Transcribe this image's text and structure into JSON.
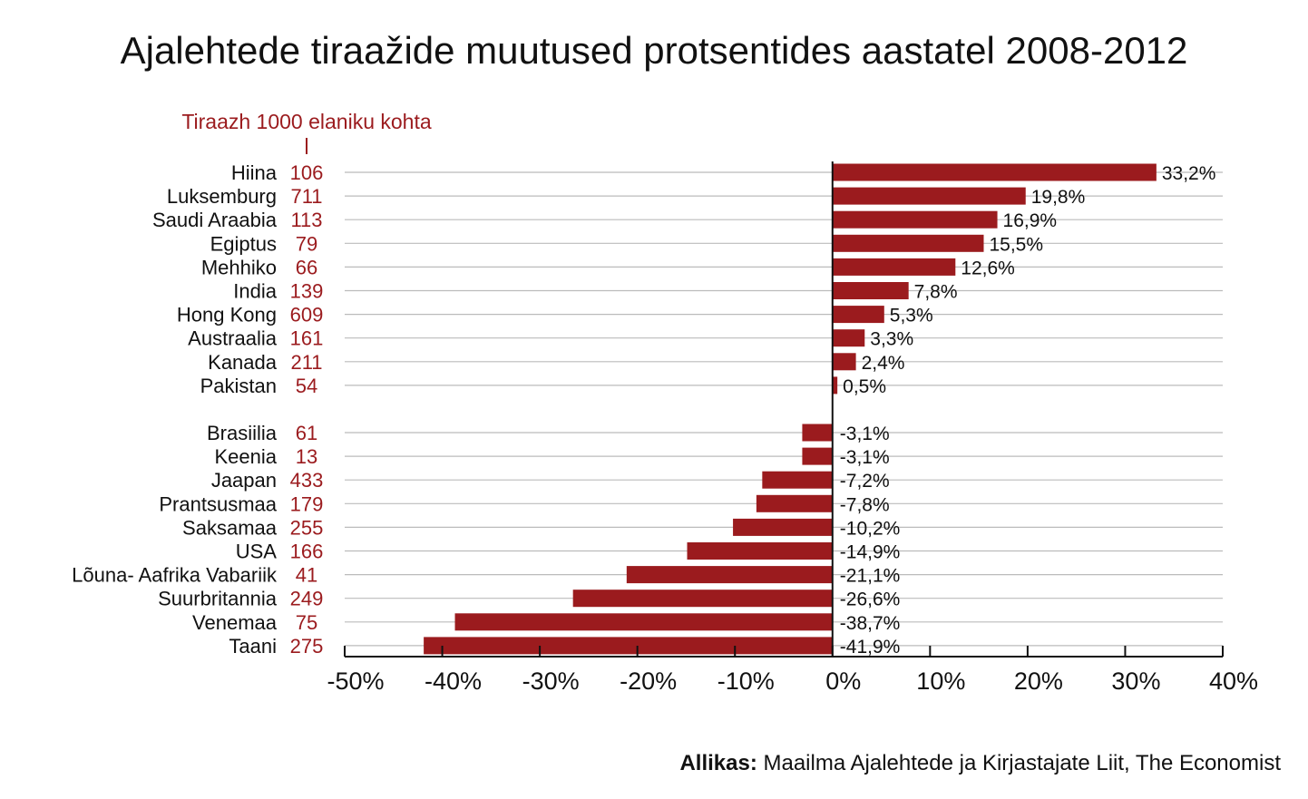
{
  "chart_data": {
    "type": "bar",
    "orientation": "horizontal",
    "title": "Ajalehtede tiraažide muutused protsentides aastatel 2008-2012",
    "secondary_column_label": "Tiraazh 1000 elaniku kohta",
    "categories": [
      "Hiina",
      "Luksemburg",
      "Saudi Araabia",
      "Egiptus",
      "Mehhiko",
      "India",
      "Hong Kong",
      "Austraalia",
      "Kanada",
      "Pakistan",
      "Brasiilia",
      "Keenia",
      "Jaapan",
      "Prantsusmaa",
      "Saksamaa",
      "USA",
      "Lõuna- Aafrika Vabariik",
      "Suurbritannia",
      "Venemaa",
      "Taani"
    ],
    "circulation": [
      "106",
      "711",
      "113",
      "79",
      "66",
      "139",
      "609",
      "161",
      "211",
      "54",
      "61",
      "13",
      "433",
      "179",
      "255",
      "166",
      "41",
      "249",
      "75",
      "275"
    ],
    "values": [
      33.2,
      19.8,
      16.9,
      15.5,
      12.6,
      7.8,
      5.3,
      3.3,
      2.4,
      0.5,
      -3.1,
      -3.1,
      -7.2,
      -7.8,
      -10.2,
      -14.9,
      -21.1,
      -26.6,
      -38.7,
      -41.9
    ],
    "value_labels": [
      "33,2%",
      "19,8%",
      "16,9%",
      "15,5%",
      "12,6%",
      "7,8%",
      "5,3%",
      "3,3%",
      "2,4%",
      "0,5%",
      "-3,1%",
      "-3,1%",
      "-7,2%",
      "-7,8%",
      "-10,2%",
      "-14,9%",
      "-21,1%",
      "-26,6%",
      "-38,7%",
      "-41,9%"
    ],
    "xlim": [
      -50,
      40
    ],
    "xticks": [
      -50,
      -40,
      -30,
      -20,
      -10,
      0,
      10,
      20,
      30,
      40
    ],
    "xtick_labels": [
      "-50%",
      "-40%",
      "-30%",
      "-20%",
      "-10%",
      "0%",
      "10%",
      "20%",
      "30%",
      "40%"
    ],
    "grid": "horizontal row lines",
    "colors": {
      "bar": "#9b1b1e",
      "circulation_text": "#9b1b1e",
      "gridline": "#bbbbbb",
      "text": "#111111"
    }
  },
  "source": {
    "label": "Allikas:",
    "text": " Maailma Ajalehtede ja Kirjastajate Liit, The Economist"
  }
}
